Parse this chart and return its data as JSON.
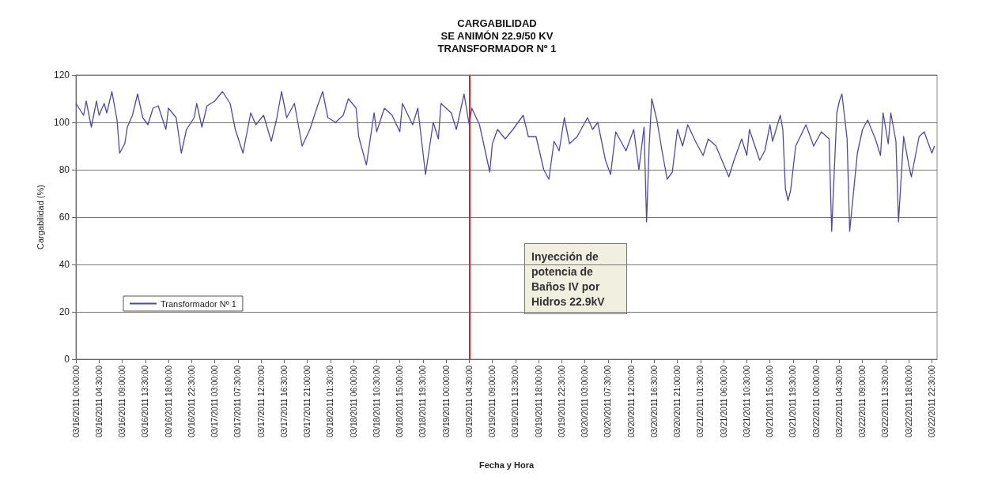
{
  "chart_data": {
    "type": "line",
    "title": "CARGABILIDAD\nSE ANIMÓN 22.9/50 KV\nTRANSFORMADOR Nº 1",
    "xlabel": "Fecha y Hora",
    "ylabel": "Cargabilidad (%)",
    "x": [
      "2011-03-16T00:00",
      "2011-03-16T01:30",
      "2011-03-16T02:00",
      "2011-03-16T03:00",
      "2011-03-16T04:00",
      "2011-03-16T04:30",
      "2011-03-16T05:30",
      "2011-03-16T06:00",
      "2011-03-16T07:00",
      "2011-03-16T08:00",
      "2011-03-16T08:30",
      "2011-03-16T09:30",
      "2011-03-16T10:00",
      "2011-03-16T11:00",
      "2011-03-16T12:00",
      "2011-03-16T13:00",
      "2011-03-16T14:00",
      "2011-03-16T15:00",
      "2011-03-16T16:00",
      "2011-03-16T17:30",
      "2011-03-16T18:00",
      "2011-03-16T19:30",
      "2011-03-16T20:30",
      "2011-03-16T21:30",
      "2011-03-16T23:00",
      "2011-03-16T23:30",
      "2011-03-17T00:30",
      "2011-03-17T01:30",
      "2011-03-17T03:00",
      "2011-03-17T04:30",
      "2011-03-17T06:00",
      "2011-03-17T07:00",
      "2011-03-17T08:30",
      "2011-03-17T10:00",
      "2011-03-17T11:00",
      "2011-03-17T12:30",
      "2011-03-17T14:00",
      "2011-03-17T15:00",
      "2011-03-17T16:00",
      "2011-03-17T17:00",
      "2011-03-17T18:30",
      "2011-03-17T20:00",
      "2011-03-17T21:30",
      "2011-03-17T23:00",
      "2011-03-18T00:00",
      "2011-03-18T01:00",
      "2011-03-18T02:30",
      "2011-03-18T04:00",
      "2011-03-18T05:00",
      "2011-03-18T06:30",
      "2011-03-18T07:00",
      "2011-03-18T08:30",
      "2011-03-18T10:00",
      "2011-03-18T10:30",
      "2011-03-18T12:00",
      "2011-03-18T13:30",
      "2011-03-18T15:00",
      "2011-03-18T15:30",
      "2011-03-18T17:30",
      "2011-03-18T18:30",
      "2011-03-18T20:00",
      "2011-03-18T21:30",
      "2011-03-18T22:30",
      "2011-03-18T23:00",
      "2011-03-19T01:00",
      "2011-03-19T02:00",
      "2011-03-19T03:30",
      "2011-03-19T04:30",
      "2011-03-19T05:00",
      "2011-03-19T06:30",
      "2011-03-19T08:30",
      "2011-03-19T09:00",
      "2011-03-19T10:00",
      "2011-03-19T11:30",
      "2011-03-19T13:00",
      "2011-03-19T15:00",
      "2011-03-19T16:00",
      "2011-03-19T17:30",
      "2011-03-19T19:00",
      "2011-03-19T20:00",
      "2011-03-19T21:00",
      "2011-03-19T22:00",
      "2011-03-19T23:00",
      "2011-03-20T00:00",
      "2011-03-20T01:30",
      "2011-03-20T03:30",
      "2011-03-20T04:30",
      "2011-03-20T05:30",
      "2011-03-20T07:00",
      "2011-03-20T08:00",
      "2011-03-20T09:00",
      "2011-03-20T11:00",
      "2011-03-20T12:30",
      "2011-03-20T13:30",
      "2011-03-20T14:30",
      "2011-03-20T15:00",
      "2011-03-20T15:30",
      "2011-03-20T16:00",
      "2011-03-20T17:00",
      "2011-03-20T18:00",
      "2011-03-20T19:00",
      "2011-03-20T20:00",
      "2011-03-20T21:00",
      "2011-03-20T22:00",
      "2011-03-20T23:00",
      "2011-03-21T00:30",
      "2011-03-21T02:00",
      "2011-03-21T03:00",
      "2011-03-21T04:30",
      "2011-03-21T07:00",
      "2011-03-21T08:00",
      "2011-03-21T09:30",
      "2011-03-21T10:30",
      "2011-03-21T11:00",
      "2011-03-21T13:00",
      "2011-03-21T14:00",
      "2011-03-21T15:00",
      "2011-03-21T15:30",
      "2011-03-21T17:00",
      "2011-03-21T17:30",
      "2011-03-21T18:00",
      "2011-03-21T18:30",
      "2011-03-21T19:00",
      "2011-03-21T20:00",
      "2011-03-21T22:00",
      "2011-03-21T23:30",
      "2011-03-22T01:00",
      "2011-03-22T02:30",
      "2011-03-22T03:00",
      "2011-03-22T04:00",
      "2011-03-22T04:30",
      "2011-03-22T05:00",
      "2011-03-22T06:00",
      "2011-03-22T06:30",
      "2011-03-22T08:00",
      "2011-03-22T09:00",
      "2011-03-22T10:00",
      "2011-03-22T11:30",
      "2011-03-22T12:30",
      "2011-03-22T13:00",
      "2011-03-22T14:00",
      "2011-03-22T14:30",
      "2011-03-22T15:30",
      "2011-03-22T16:00",
      "2011-03-22T17:00",
      "2011-03-22T18:00",
      "2011-03-22T18:30",
      "2011-03-22T20:00",
      "2011-03-22T21:00",
      "2011-03-22T22:30",
      "2011-03-22T23:00"
    ],
    "series": [
      {
        "name": "Transformador Nº 1",
        "color": "#4d4aa6",
        "values": [
          108,
          103,
          109,
          98,
          109,
          103,
          108,
          104,
          113,
          101,
          87,
          91,
          98,
          103,
          112,
          102,
          99,
          106,
          107,
          97,
          106,
          102,
          87,
          97,
          102,
          108,
          98,
          107,
          109,
          113,
          108,
          97,
          87,
          104,
          99,
          103,
          92,
          101,
          113,
          102,
          108,
          90,
          97,
          107,
          113,
          102,
          100,
          103,
          110,
          106,
          94,
          82,
          104,
          96,
          106,
          103,
          96,
          108,
          99,
          106,
          78,
          100,
          93,
          108,
          104,
          97,
          112,
          99,
          106,
          99,
          79,
          91,
          97,
          93,
          97,
          103,
          94,
          94,
          80,
          76,
          92,
          88,
          102,
          91,
          94,
          102,
          97,
          100,
          84,
          78,
          96,
          88,
          97,
          80,
          98,
          58,
          90,
          110,
          101,
          88,
          76,
          79,
          97,
          90,
          99,
          92,
          86,
          93,
          90,
          77,
          84,
          93,
          86,
          97,
          84,
          88,
          99,
          92,
          103,
          97,
          72,
          67,
          71,
          90,
          99,
          90,
          96,
          93,
          54,
          104,
          109,
          112,
          93,
          54,
          87,
          97,
          101,
          93,
          86,
          104,
          91,
          104,
          92,
          58,
          94,
          82,
          77,
          94,
          96,
          87,
          90
        ]
      }
    ],
    "xlim": [
      "2011-03-16T00:00",
      "2011-03-22T23:30"
    ],
    "xticks": [
      {
        "value": "2011-03-16T00:00",
        "label": "03/16/2011 00:00:00"
      },
      {
        "value": "2011-03-16T04:30",
        "label": "03/16/2011 04:30:00"
      },
      {
        "value": "2011-03-16T09:00",
        "label": "03/16/2011 09:00:00"
      },
      {
        "value": "2011-03-16T13:30",
        "label": "03/16/2011 13:30:00"
      },
      {
        "value": "2011-03-16T18:00",
        "label": "03/16/2011 18:00:00"
      },
      {
        "value": "2011-03-16T22:30",
        "label": "03/16/2011 22:30:00"
      },
      {
        "value": "2011-03-17T03:00",
        "label": "03/17/2011 03:00:00"
      },
      {
        "value": "2011-03-17T07:30",
        "label": "03/17/2011 07:30:00"
      },
      {
        "value": "2011-03-17T12:00",
        "label": "03/17/2011 12:00:00"
      },
      {
        "value": "2011-03-17T16:30",
        "label": "03/17/2011 16:30:00"
      },
      {
        "value": "2011-03-17T21:00",
        "label": "03/17/2011 21:00:00"
      },
      {
        "value": "2011-03-18T01:30",
        "label": "03/18/2011 01:30:00"
      },
      {
        "value": "2011-03-18T06:00",
        "label": "03/18/2011 06:00:00"
      },
      {
        "value": "2011-03-18T10:30",
        "label": "03/18/2011 10:30:00"
      },
      {
        "value": "2011-03-18T15:00",
        "label": "03/18/2011 15:00:00"
      },
      {
        "value": "2011-03-18T19:30",
        "label": "03/18/2011 19:30:00"
      },
      {
        "value": "2011-03-19T00:00",
        "label": "03/19/2011 00:00:00"
      },
      {
        "value": "2011-03-19T04:30",
        "label": "03/19/2011 04:30:00"
      },
      {
        "value": "2011-03-19T09:00",
        "label": "03/19/2011 09:00:00"
      },
      {
        "value": "2011-03-19T13:30",
        "label": "03/19/2011 13:30:00"
      },
      {
        "value": "2011-03-19T18:00",
        "label": "03/19/2011 18:00:00"
      },
      {
        "value": "2011-03-19T22:30",
        "label": "03/19/2011 22:30:00"
      },
      {
        "value": "2011-03-20T03:00",
        "label": "03/20/2011 03:00:00"
      },
      {
        "value": "2011-03-20T07:30",
        "label": "03/20/2011 07:30:00"
      },
      {
        "value": "2011-03-20T12:00",
        "label": "03/20/2011 12:00:00"
      },
      {
        "value": "2011-03-20T16:30",
        "label": "03/20/2011 16:30:00"
      },
      {
        "value": "2011-03-20T21:00",
        "label": "03/20/2011 21:00:00"
      },
      {
        "value": "2011-03-21T01:30",
        "label": "03/21/2011 01:30:00"
      },
      {
        "value": "2011-03-21T06:00",
        "label": "03/21/2011 06:00:00"
      },
      {
        "value": "2011-03-21T10:30",
        "label": "03/21/2011 10:30:00"
      },
      {
        "value": "2011-03-21T15:00",
        "label": "03/21/2011 15:00:00"
      },
      {
        "value": "2011-03-21T19:30",
        "label": "03/21/2011 19:30:00"
      },
      {
        "value": "2011-03-22T00:00",
        "label": "03/22/2011 00:00:00"
      },
      {
        "value": "2011-03-22T04:30",
        "label": "03/22/2011 04:30:00"
      },
      {
        "value": "2011-03-22T09:00",
        "label": "03/22/2011 09:00:00"
      },
      {
        "value": "2011-03-22T13:30",
        "label": "03/22/2011 13:30:00"
      },
      {
        "value": "2011-03-22T18:00",
        "label": "03/22/2011 18:00:00"
      },
      {
        "value": "2011-03-22T22:30",
        "label": "03/22/2011 22:30:00"
      }
    ],
    "ylim": [
      0,
      120
    ],
    "yticks": [
      0,
      20,
      40,
      60,
      80,
      100,
      120
    ],
    "grid": "y",
    "legend": "bottom left",
    "marker": "none",
    "ref_lines": [
      {
        "axis": "x",
        "value": "2011-03-19T04:30",
        "color": "#c0302a"
      }
    ],
    "annotations": [
      "Inyección de potencia de Baños IV por Hidros 22.9kV"
    ]
  }
}
